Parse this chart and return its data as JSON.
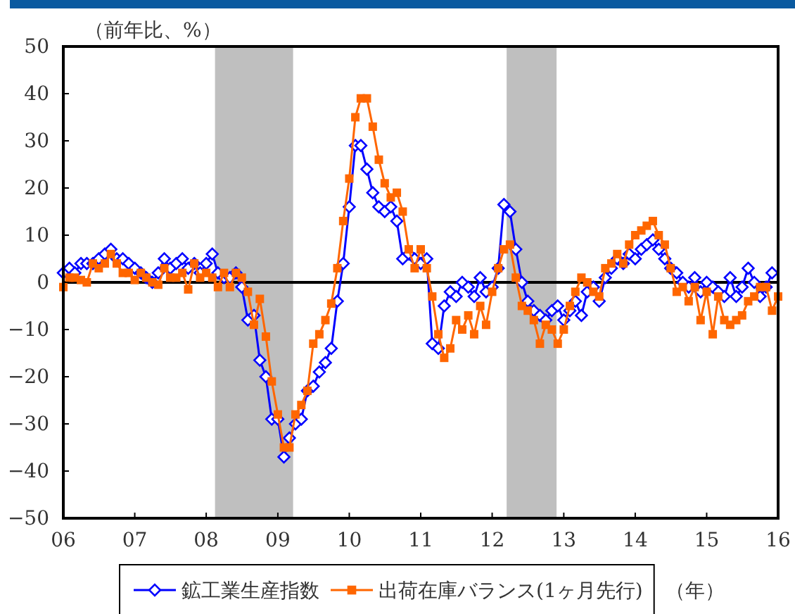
{
  "chart_data": {
    "type": "line",
    "ylabel": "（前年比、%）",
    "annotations": [
      "（年）"
    ],
    "xlim": [
      "2006-01",
      "2016-01"
    ],
    "xticks": [
      {
        "value": "2006-01",
        "label": "06"
      },
      {
        "value": "2007-01",
        "label": "07"
      },
      {
        "value": "2008-01",
        "label": "08"
      },
      {
        "value": "2009-01",
        "label": "09"
      },
      {
        "value": "2010-01",
        "label": "10"
      },
      {
        "value": "2011-01",
        "label": "11"
      },
      {
        "value": "2012-01",
        "label": "12"
      },
      {
        "value": "2013-01",
        "label": "13"
      },
      {
        "value": "2014-01",
        "label": "14"
      },
      {
        "value": "2015-01",
        "label": "15"
      },
      {
        "value": "2016-01",
        "label": "16"
      }
    ],
    "ylim": [
      -50,
      50
    ],
    "yticks": [
      -50,
      -40,
      -30,
      -20,
      -10,
      0,
      10,
      20,
      30,
      40,
      50
    ],
    "grid": false,
    "legend": "bottom",
    "bands": [
      {
        "axis": "x",
        "from": "2008-02-15",
        "to": "2009-03-20",
        "color": "#bfbfbf"
      },
      {
        "axis": "x",
        "from": "2012-03-15",
        "to": "2012-11-25",
        "color": "#bfbfbf"
      }
    ],
    "ref_lines": [
      {
        "axis": "y",
        "value": 0,
        "color": "#000000"
      }
    ],
    "series": [
      {
        "name": "鉱工業生産指数",
        "color": "#0000ff",
        "marker": "diamond",
        "x": [
          "2006-01",
          "2006-02",
          "2006-03",
          "2006-04",
          "2006-05",
          "2006-06",
          "2006-07",
          "2006-08",
          "2006-09",
          "2006-10",
          "2006-11",
          "2006-12",
          "2007-01",
          "2007-02",
          "2007-03",
          "2007-04",
          "2007-05",
          "2007-06",
          "2007-07",
          "2007-08",
          "2007-09",
          "2007-10",
          "2007-11",
          "2007-12",
          "2008-01",
          "2008-02",
          "2008-03",
          "2008-04",
          "2008-05",
          "2008-06",
          "2008-07",
          "2008-08",
          "2008-09",
          "2008-10",
          "2008-11",
          "2008-12",
          "2009-01",
          "2009-02",
          "2009-03",
          "2009-04",
          "2009-05",
          "2009-06",
          "2009-07",
          "2009-08",
          "2009-09",
          "2009-10",
          "2009-11",
          "2009-12",
          "2010-01",
          "2010-02",
          "2010-03",
          "2010-04",
          "2010-05",
          "2010-06",
          "2010-07",
          "2010-08",
          "2010-09",
          "2010-10",
          "2010-11",
          "2010-12",
          "2011-01",
          "2011-02",
          "2011-03",
          "2011-04",
          "2011-05",
          "2011-06",
          "2011-07",
          "2011-08",
          "2011-09",
          "2011-10",
          "2011-11",
          "2011-12",
          "2012-01",
          "2012-02",
          "2012-03",
          "2012-04",
          "2012-05",
          "2012-06",
          "2012-07",
          "2012-08",
          "2012-09",
          "2012-10",
          "2012-11",
          "2012-12",
          "2013-01",
          "2013-02",
          "2013-03",
          "2013-04",
          "2013-05",
          "2013-06",
          "2013-07",
          "2013-08",
          "2013-09",
          "2013-10",
          "2013-11",
          "2013-12",
          "2014-01",
          "2014-02",
          "2014-03",
          "2014-04",
          "2014-05",
          "2014-06",
          "2014-07",
          "2014-08",
          "2014-09",
          "2014-10",
          "2014-11",
          "2014-12",
          "2015-01",
          "2015-02",
          "2015-03",
          "2015-04",
          "2015-05",
          "2015-06",
          "2015-07",
          "2015-08",
          "2015-09",
          "2015-10",
          "2015-11",
          "2015-12"
        ],
        "values": [
          2,
          3,
          2,
          4,
          4,
          4,
          5,
          6,
          7,
          5,
          5,
          4,
          3,
          2,
          1,
          0,
          2,
          5,
          3,
          4,
          5,
          3,
          4,
          2,
          4,
          6,
          2,
          1,
          1,
          2,
          -1,
          -8,
          -7,
          -16.5,
          -20,
          -29,
          -29,
          -37,
          -33,
          -30,
          -29,
          -23,
          -22,
          -19,
          -17,
          -14,
          -4,
          4,
          16,
          29,
          29,
          24,
          19,
          16,
          15,
          16,
          13,
          5,
          6,
          5,
          4,
          5,
          -13,
          -14,
          -5,
          -2,
          -3,
          0,
          -1,
          -3,
          1,
          -2,
          -1,
          3,
          16.5,
          15,
          7,
          0,
          -4,
          -6,
          -7,
          -8,
          -6,
          -5,
          -8,
          -6,
          -4,
          -7,
          -2,
          -1,
          -4,
          1,
          3,
          5,
          4,
          6,
          5,
          7,
          8,
          9,
          7,
          5,
          3,
          2,
          0,
          -1,
          1,
          -2,
          0,
          -1,
          -2,
          -3,
          1,
          -3,
          -1,
          3,
          0,
          -3,
          -1,
          2
        ]
      },
      {
        "name": "出荷在庫バランス(1ヶ月先行)",
        "color": "#ff6600",
        "marker": "square",
        "x": [
          "2006-01",
          "2006-02",
          "2006-03",
          "2006-04",
          "2006-05",
          "2006-06",
          "2006-07",
          "2006-08",
          "2006-09",
          "2006-10",
          "2006-11",
          "2006-12",
          "2007-01",
          "2007-02",
          "2007-03",
          "2007-04",
          "2007-05",
          "2007-06",
          "2007-07",
          "2007-08",
          "2007-09",
          "2007-10",
          "2007-11",
          "2007-12",
          "2008-01",
          "2008-02",
          "2008-03",
          "2008-04",
          "2008-05",
          "2008-06",
          "2008-07",
          "2008-08",
          "2008-09",
          "2008-10",
          "2008-11",
          "2008-12",
          "2009-01",
          "2009-02",
          "2009-03",
          "2009-04",
          "2009-05",
          "2009-06",
          "2009-07",
          "2009-08",
          "2009-09",
          "2009-10",
          "2009-11",
          "2009-12",
          "2010-01",
          "2010-02",
          "2010-03",
          "2010-04",
          "2010-05",
          "2010-06",
          "2010-07",
          "2010-08",
          "2010-09",
          "2010-10",
          "2010-11",
          "2010-12",
          "2011-01",
          "2011-02",
          "2011-03",
          "2011-04",
          "2011-05",
          "2011-06",
          "2011-07",
          "2011-08",
          "2011-09",
          "2011-10",
          "2011-11",
          "2011-12",
          "2012-01",
          "2012-02",
          "2012-03",
          "2012-04",
          "2012-05",
          "2012-06",
          "2012-07",
          "2012-08",
          "2012-09",
          "2012-10",
          "2012-11",
          "2012-12",
          "2013-01",
          "2013-02",
          "2013-03",
          "2013-04",
          "2013-05",
          "2013-06",
          "2013-07",
          "2013-08",
          "2013-09",
          "2013-10",
          "2013-11",
          "2013-12",
          "2014-01",
          "2014-02",
          "2014-03",
          "2014-04",
          "2014-05",
          "2014-06",
          "2014-07",
          "2014-08",
          "2014-09",
          "2014-10",
          "2014-11",
          "2014-12",
          "2015-01",
          "2015-02",
          "2015-03",
          "2015-04",
          "2015-05",
          "2015-06",
          "2015-07",
          "2015-08",
          "2015-09",
          "2015-10",
          "2015-11",
          "2015-12",
          "2016-01"
        ],
        "values": [
          -1,
          1,
          1,
          0.5,
          0,
          4,
          3,
          4,
          6,
          4,
          2,
          2,
          0.5,
          2,
          1,
          0,
          -0.5,
          3,
          1,
          1,
          2,
          -1.5,
          4,
          1,
          2,
          1,
          -1,
          2,
          -1,
          2,
          1,
          -2,
          -9,
          -3.5,
          -11.5,
          -21,
          -28,
          -35,
          -35,
          -28,
          -26,
          -23,
          -13,
          -11,
          -8,
          -4.5,
          3,
          13,
          22,
          35,
          39,
          39,
          33,
          26,
          21,
          18,
          19,
          15,
          7,
          3,
          7,
          3,
          -3,
          -11,
          -16,
          -14,
          -8,
          -10,
          -7,
          -11,
          -5,
          -9,
          -2,
          3,
          7,
          8,
          1,
          -5,
          -6,
          -8,
          -13,
          -9,
          -10,
          -13,
          -10,
          -5,
          -2,
          1,
          0,
          -2,
          -3,
          3,
          4,
          6,
          4,
          8,
          10,
          11,
          12,
          13,
          10,
          8,
          3,
          -2,
          -1,
          -4,
          -1,
          -8,
          -2,
          -11,
          -3,
          -8,
          -9,
          -8,
          -7,
          -4,
          -3,
          -1,
          -1,
          -6,
          -3
        ]
      }
    ]
  }
}
